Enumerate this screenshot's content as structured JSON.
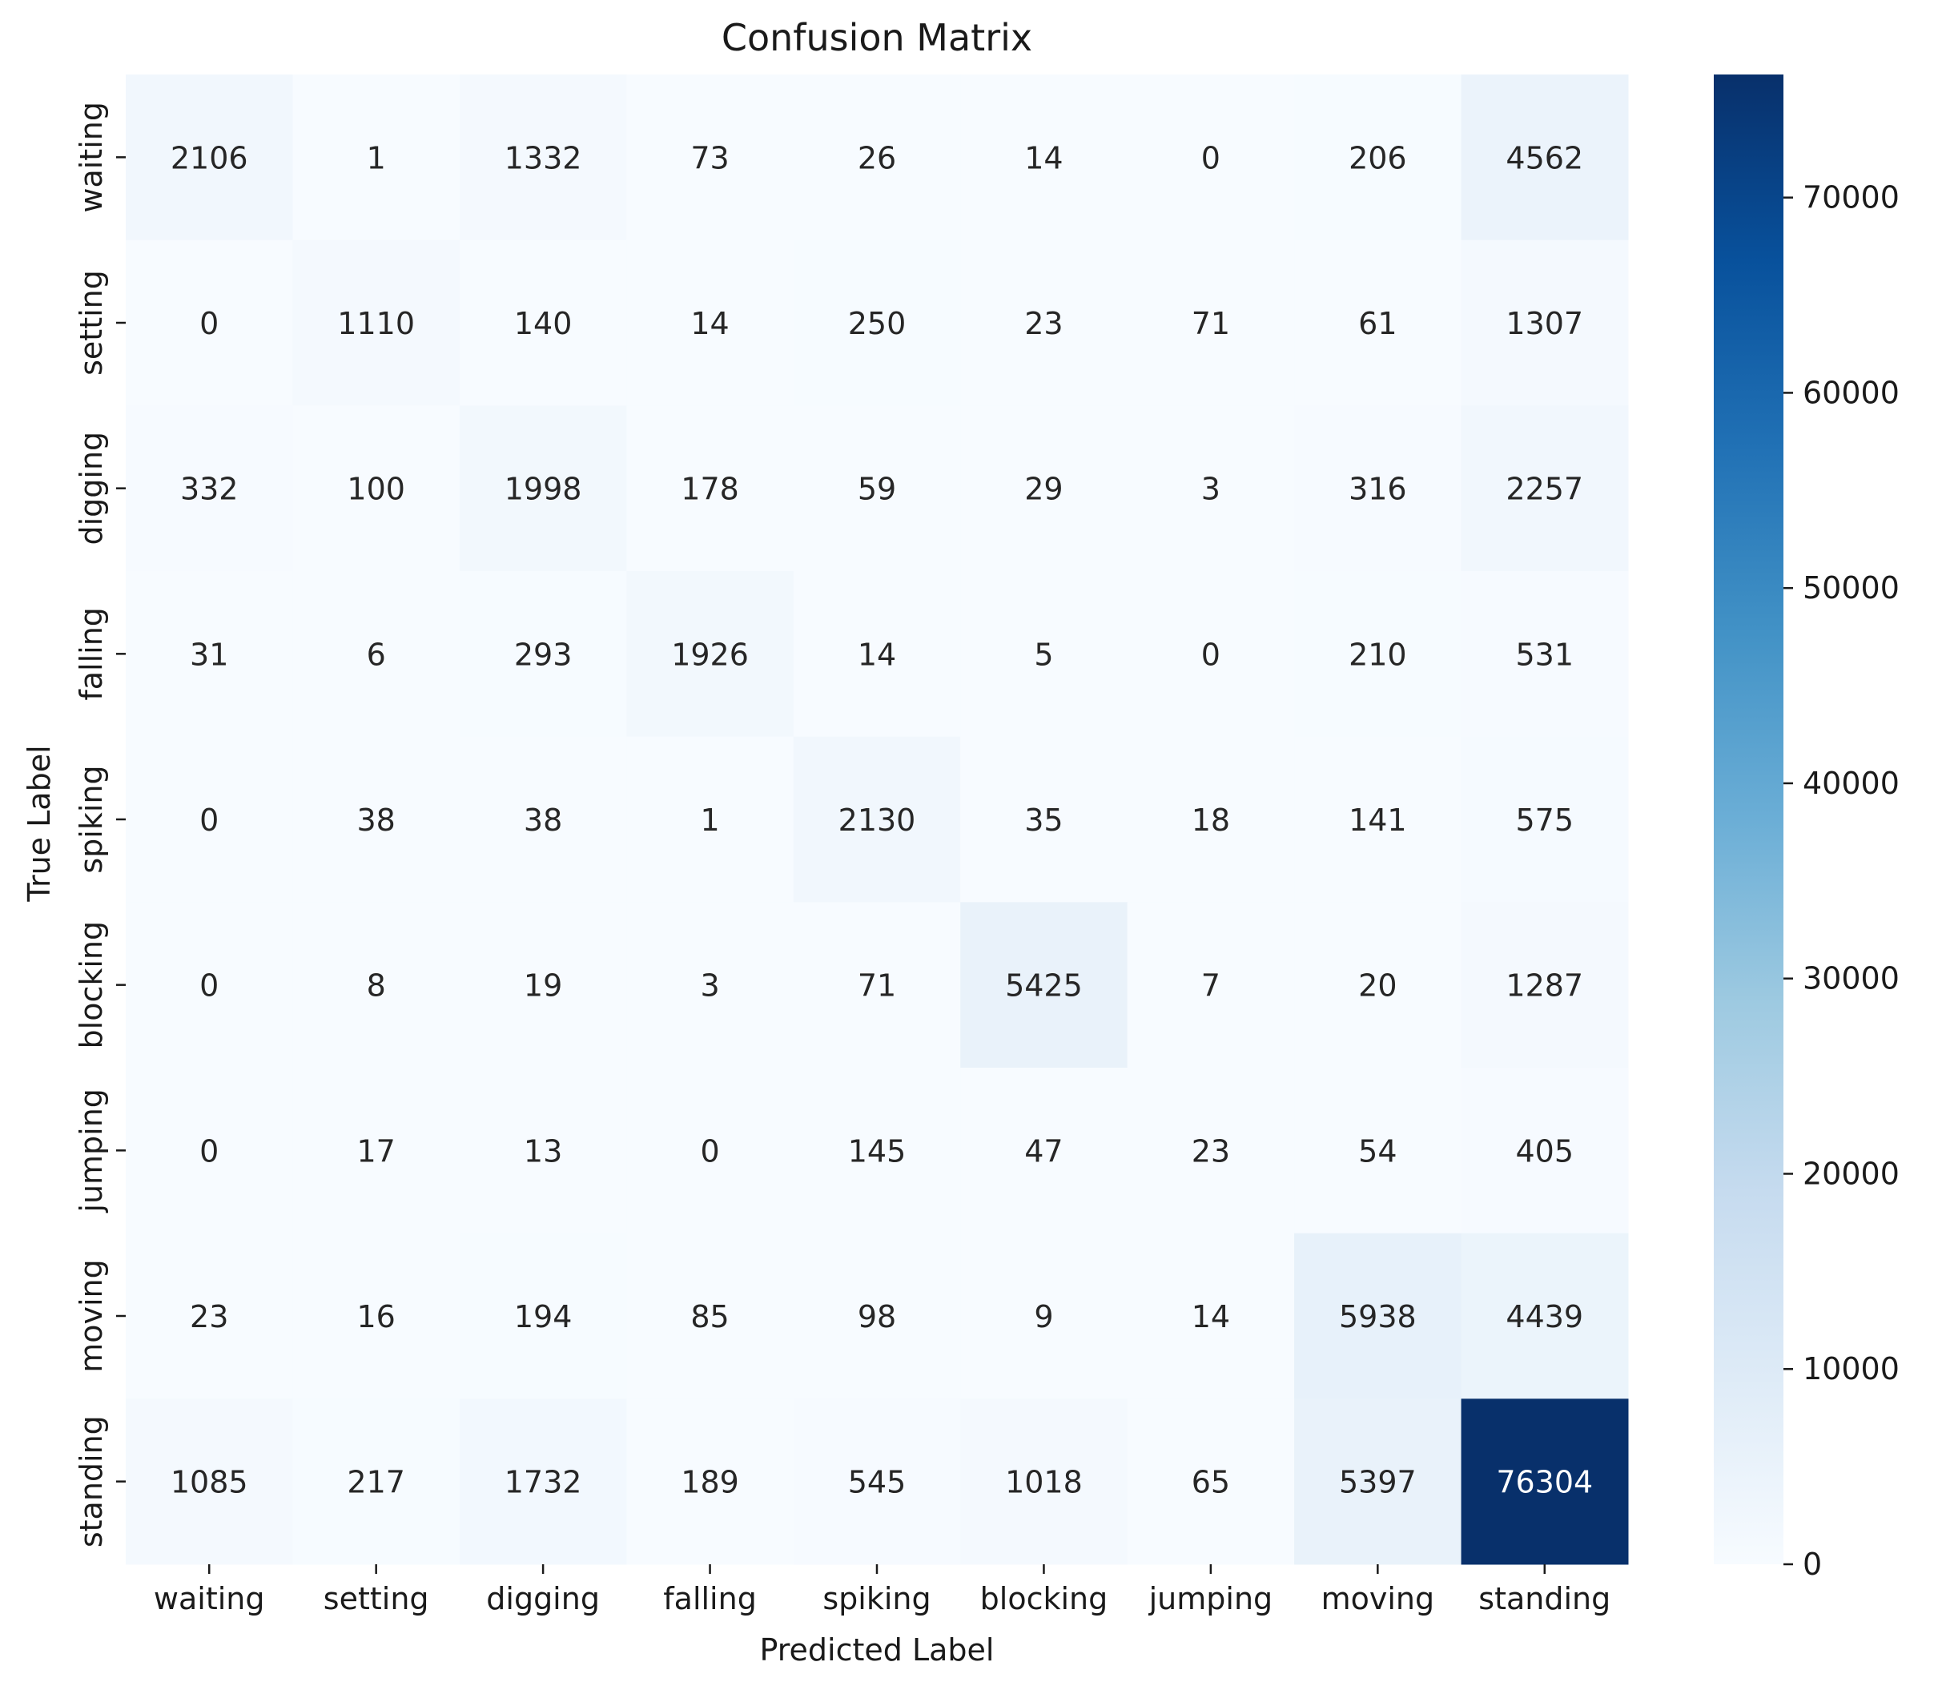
{
  "chart_data": {
    "type": "heatmap",
    "title": "Confusion Matrix",
    "xlabel": "Predicted Label",
    "ylabel": "True Label",
    "x_categories": [
      "waiting",
      "setting",
      "digging",
      "falling",
      "spiking",
      "blocking",
      "jumping",
      "moving",
      "standing"
    ],
    "y_categories": [
      "waiting",
      "setting",
      "digging",
      "falling",
      "spiking",
      "blocking",
      "jumping",
      "moving",
      "standing"
    ],
    "matrix": [
      [
        2106,
        1,
        1332,
        73,
        26,
        14,
        0,
        206,
        4562
      ],
      [
        0,
        1110,
        140,
        14,
        250,
        23,
        71,
        61,
        1307
      ],
      [
        332,
        100,
        1998,
        178,
        59,
        29,
        3,
        316,
        2257
      ],
      [
        31,
        6,
        293,
        1926,
        14,
        5,
        0,
        210,
        531
      ],
      [
        0,
        38,
        38,
        1,
        2130,
        35,
        18,
        141,
        575
      ],
      [
        0,
        8,
        19,
        3,
        71,
        5425,
        7,
        20,
        1287
      ],
      [
        0,
        17,
        13,
        0,
        145,
        47,
        23,
        54,
        405
      ],
      [
        23,
        16,
        194,
        85,
        98,
        9,
        14,
        5938,
        4439
      ],
      [
        1085,
        217,
        1732,
        189,
        545,
        1018,
        65,
        5397,
        76304
      ]
    ],
    "colormap": "Blues",
    "colorbar": {
      "range": [
        0,
        76304
      ],
      "ticks": [
        0,
        10000,
        20000,
        30000,
        40000,
        50000,
        60000,
        70000
      ],
      "tick_labels": [
        "0",
        "10000",
        "20000",
        "30000",
        "40000",
        "50000",
        "60000",
        "70000"
      ]
    },
    "grid": false
  }
}
